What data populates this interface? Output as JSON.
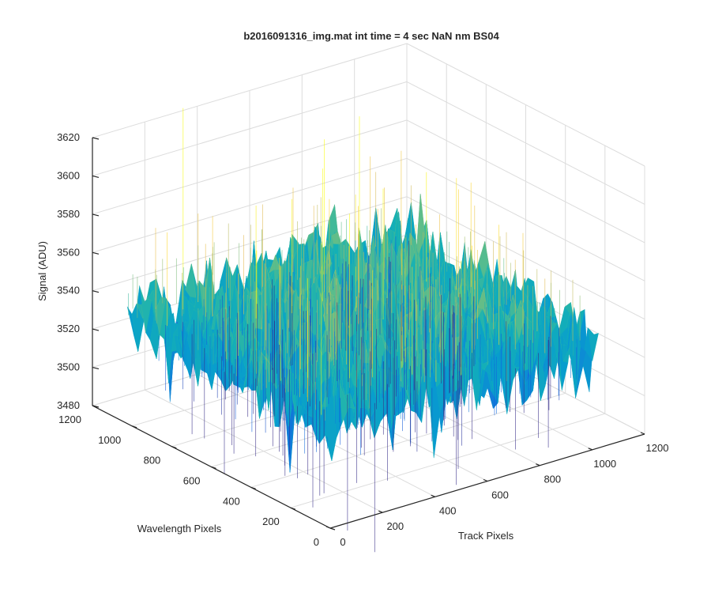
{
  "chart_data": {
    "type": "surface",
    "title": "b2016091316_img.mat int time = 4 sec  NaN nm BS04",
    "xlabel": "Track Pixels",
    "ylabel": "Wavelength Pixels",
    "zlabel": "Signal (ADU)",
    "xlim": [
      0,
      1200
    ],
    "ylim": [
      0,
      1200
    ],
    "zlim": [
      3480,
      3620
    ],
    "x_ticks": [
      "0",
      "200",
      "400",
      "600",
      "800",
      "1000",
      "1200"
    ],
    "y_ticks": [
      "0",
      "200",
      "400",
      "600",
      "800",
      "1000",
      "1200"
    ],
    "z_ticks": [
      "3480",
      "3500",
      "3520",
      "3540",
      "3560",
      "3580",
      "3600",
      "3620"
    ],
    "surface": {
      "x_range": [
        0,
        1024
      ],
      "y_range": [
        0,
        1024
      ],
      "mean_signal": 3535,
      "noise_range": [
        3495,
        3600
      ],
      "colormap": "parula"
    },
    "grid": true
  }
}
